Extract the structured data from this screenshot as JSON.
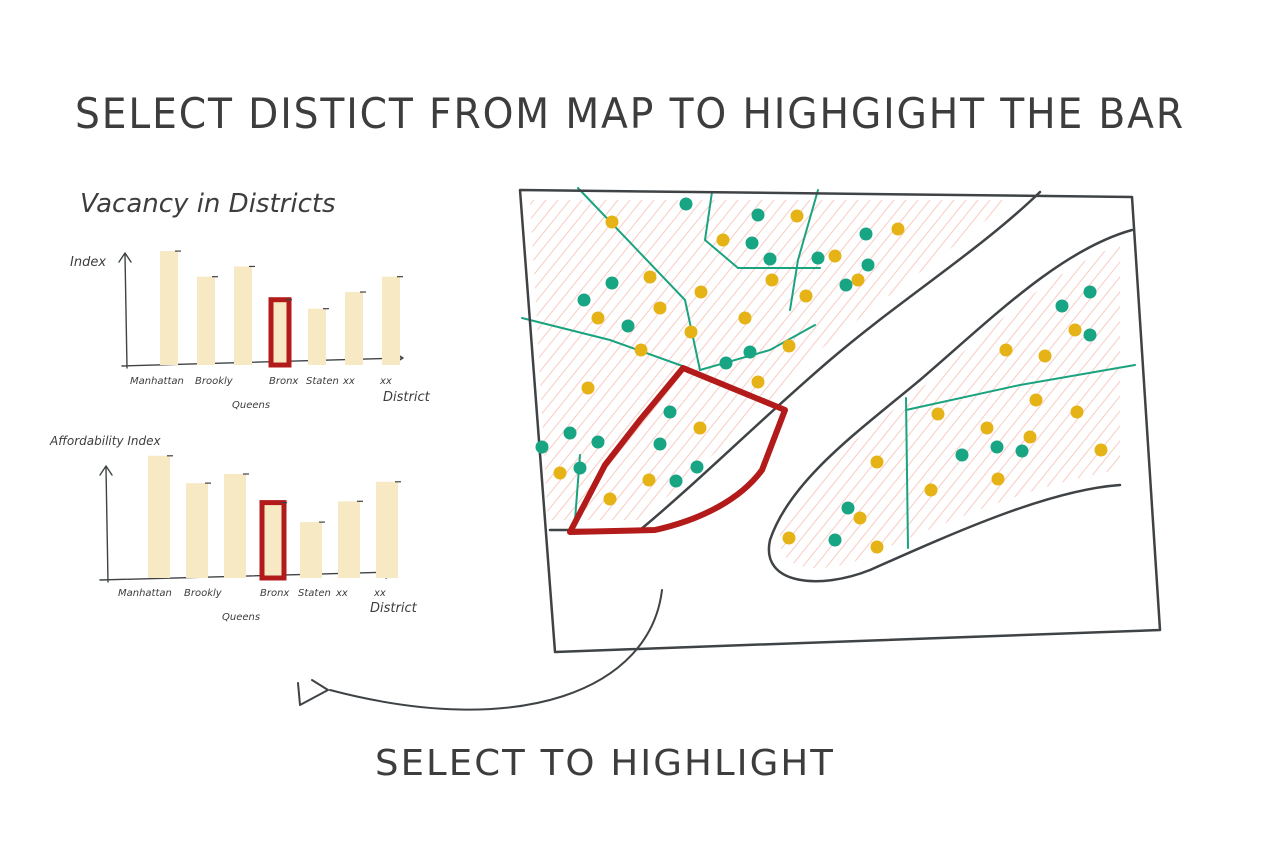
{
  "title": "SELECT DISTICT FROM MAP TO HIGHGIGHT THE BAR",
  "footer_label": "SELECT TO HIGHLIGHT",
  "colors": {
    "ink": "#3f4345",
    "bar_fill": "#f7e9c4",
    "highlight": "#b31b1b",
    "map_hatch": "#f1a394",
    "boundary": "#1aa37f",
    "dot_green": "#17a583",
    "dot_yellow": "#e6b317"
  },
  "charts": [
    {
      "id": "vacancy",
      "title": "Vacancy in Districts",
      "ylabel": "Index",
      "xlabel": "District",
      "categories": [
        "Manhattan",
        "Brookly",
        "Queens",
        "Bronx",
        "Staten",
        "xx",
        "xx"
      ],
      "highlighted": "Bronx"
    },
    {
      "id": "affordability",
      "title": "",
      "ylabel": "Affordability Index",
      "xlabel": "District",
      "categories": [
        "Manhattan",
        "Brookly",
        "Queens",
        "Bronx",
        "Staten",
        "xx",
        "xx"
      ],
      "highlighted": "Bronx"
    }
  ],
  "chart_data": [
    {
      "type": "bar",
      "title": "Vacancy in Districts",
      "categories": [
        "Manhattan",
        "Brookly",
        "Queens",
        "Bronx",
        "Staten",
        "xx",
        "xx"
      ],
      "values": [
        8.9,
        6.9,
        7.7,
        5.1,
        4.4,
        5.7,
        6.9
      ],
      "ylabel": "Index",
      "xlabel": "District",
      "ylim": [
        0,
        10
      ],
      "grid": false
    },
    {
      "type": "bar",
      "title": "",
      "categories": [
        "Manhattan",
        "Brookly",
        "Queens",
        "Bronx",
        "Staten",
        "xx",
        "xx"
      ],
      "values": [
        9.4,
        7.3,
        8.0,
        5.8,
        4.3,
        5.9,
        7.4
      ],
      "ylabel": "Affordability Index",
      "xlabel": "District",
      "ylim": [
        0,
        10
      ],
      "grid": false
    }
  ]
}
